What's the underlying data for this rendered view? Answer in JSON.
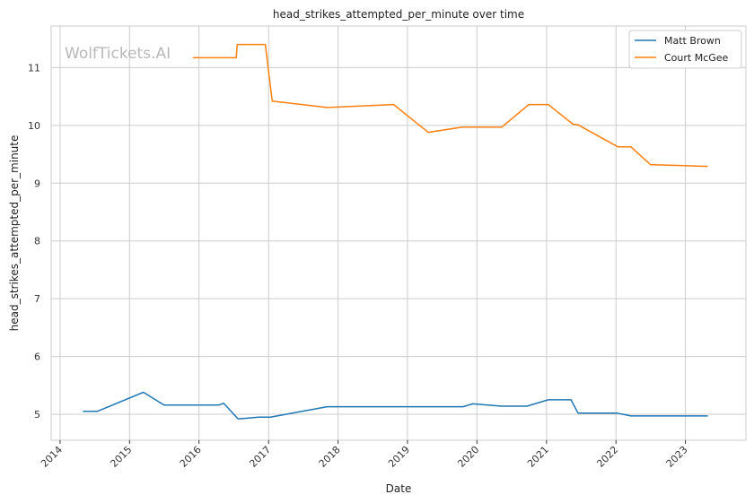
{
  "chart_data": {
    "type": "line",
    "title": "head_strikes_attempted_per_minute over time",
    "xlabel": "Date",
    "ylabel": "head_strikes_attempted_per_minute",
    "watermark": "WolfTickets.AI",
    "xlim": [
      "2013-11-15",
      "2023-11-15"
    ],
    "ylim": [
      4.55,
      11.72
    ],
    "x_ticks": [
      "2014",
      "2015",
      "2016",
      "2017",
      "2018",
      "2019",
      "2020",
      "2021",
      "2022",
      "2023"
    ],
    "y_ticks": [
      5,
      6,
      7,
      8,
      9,
      10,
      11
    ],
    "grid": true,
    "legend_position": "top-right",
    "colors": {
      "Matt Brown": "#1f77b4",
      "Court McGee": "#ff7f0e",
      "grid": "#cccccc",
      "frame": "#cccccc"
    },
    "series": [
      {
        "name": "Matt Brown",
        "points": [
          [
            "2014-05-01",
            5.05
          ],
          [
            "2014-07-15",
            5.05
          ],
          [
            "2015-03-15",
            5.38
          ],
          [
            "2015-07-01",
            5.16
          ],
          [
            "2016-04-15",
            5.16
          ],
          [
            "2016-05-10",
            5.19
          ],
          [
            "2016-07-25",
            4.92
          ],
          [
            "2016-11-10",
            4.95
          ],
          [
            "2017-01-10",
            4.95
          ],
          [
            "2017-11-05",
            5.13
          ],
          [
            "2019-10-20",
            5.13
          ],
          [
            "2019-12-10",
            5.18
          ],
          [
            "2020-05-10",
            5.14
          ],
          [
            "2020-09-20",
            5.14
          ],
          [
            "2021-01-10",
            5.25
          ],
          [
            "2021-05-10",
            5.25
          ],
          [
            "2021-06-15",
            5.02
          ],
          [
            "2022-01-05",
            5.02
          ],
          [
            "2022-03-20",
            4.97
          ],
          [
            "2023-04-29",
            4.97
          ]
        ]
      },
      {
        "name": "Court McGee",
        "points": [
          [
            "2015-12-01",
            11.17
          ],
          [
            "2016-07-15",
            11.17
          ],
          [
            "2016-07-20",
            11.4
          ],
          [
            "2016-12-15",
            11.4
          ],
          [
            "2017-01-20",
            10.42
          ],
          [
            "2017-11-05",
            10.31
          ],
          [
            "2018-10-20",
            10.36
          ],
          [
            "2019-04-20",
            9.88
          ],
          [
            "2019-10-15",
            9.97
          ],
          [
            "2020-05-10",
            9.97
          ],
          [
            "2020-09-30",
            10.36
          ],
          [
            "2021-01-10",
            10.36
          ],
          [
            "2021-05-20",
            10.02
          ],
          [
            "2021-06-15",
            10.01
          ],
          [
            "2022-01-10",
            9.63
          ],
          [
            "2022-03-20",
            9.63
          ],
          [
            "2022-07-01",
            9.32
          ],
          [
            "2023-04-29",
            9.29
          ]
        ]
      }
    ]
  }
}
